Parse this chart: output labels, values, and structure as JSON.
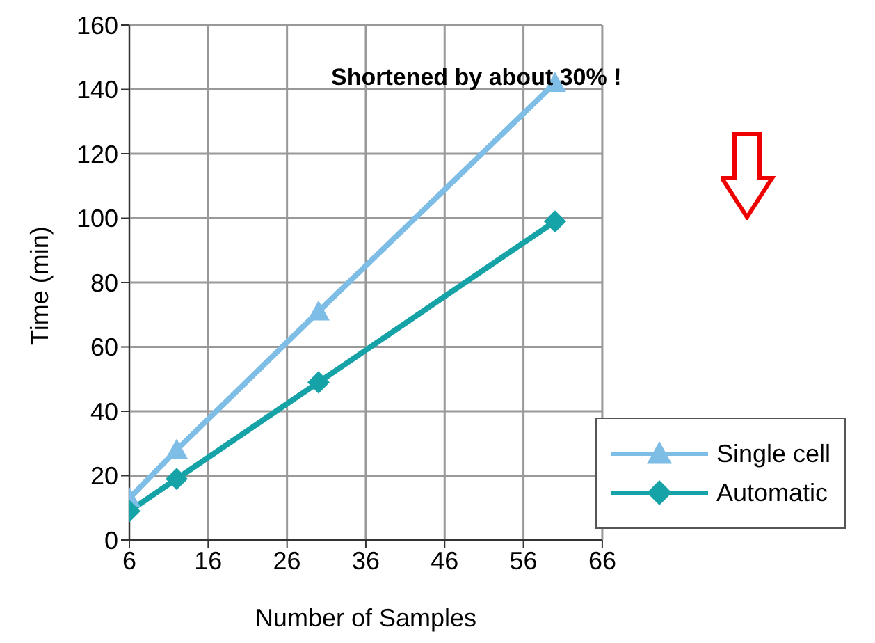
{
  "chart_data": {
    "type": "line",
    "xlabel": "Number of Samples",
    "ylabel": "Time (min)",
    "xlim": [
      6,
      66
    ],
    "xticks": [
      6,
      16,
      26,
      36,
      46,
      56,
      66
    ],
    "ylim": [
      0,
      160
    ],
    "yticks": [
      0,
      20,
      40,
      60,
      80,
      100,
      120,
      140,
      160
    ],
    "grid": true,
    "legend": "bottom right",
    "line_style": "solid",
    "annotations": [
      "Shortened by about 30% !"
    ],
    "series": [
      {
        "name": "Single cell",
        "color": "#7dbde6",
        "marker": "triangle",
        "x": [
          6,
          12,
          30,
          60
        ],
        "values": [
          13,
          28,
          71,
          142
        ]
      },
      {
        "name": "Automatic",
        "color": "#16a3a8",
        "marker": "diamond",
        "x": [
          6,
          12,
          30,
          60
        ],
        "values": [
          9,
          19,
          49,
          99
        ]
      }
    ]
  }
}
